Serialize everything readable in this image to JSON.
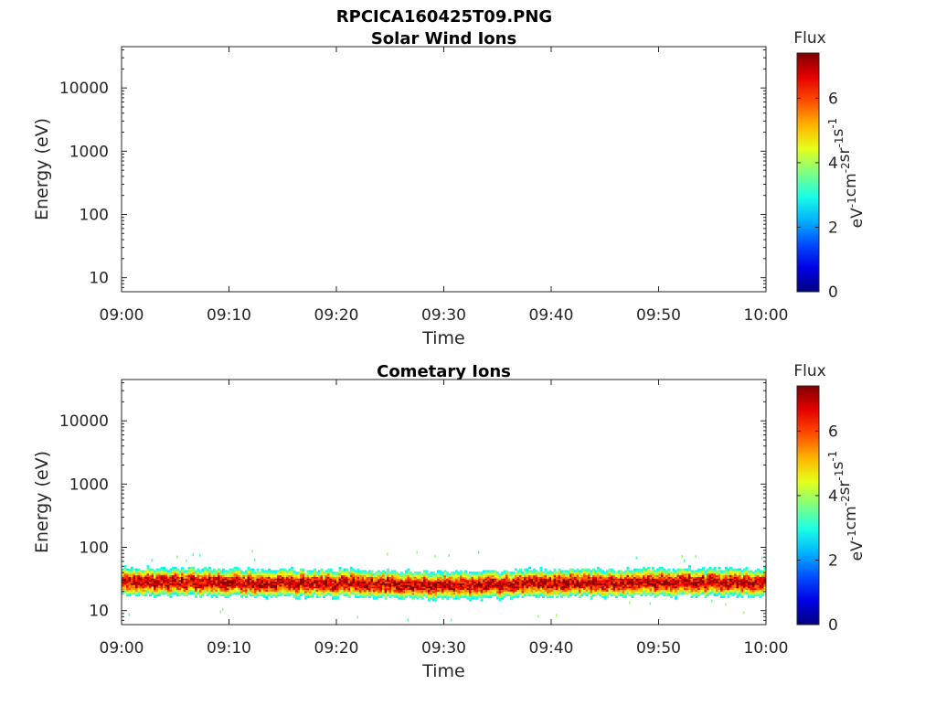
{
  "figure": {
    "title": "RPCICA160425T09.PNG"
  },
  "colorbar": {
    "label": "Flux",
    "ticks": [
      0,
      2,
      4,
      6
    ],
    "range": [
      0,
      7.4
    ],
    "colormap": "jet",
    "unit_parts": [
      "eV",
      "-1",
      "cm",
      "-2",
      "sr",
      "-1",
      "s",
      "-1"
    ]
  },
  "chart_data": [
    {
      "type": "heatmap",
      "title": "Solar Wind Ions",
      "xlabel": "Time",
      "ylabel": "Energy (eV)",
      "x_ticks": [
        "09:00",
        "09:10",
        "09:20",
        "09:30",
        "09:40",
        "09:50",
        "10:00"
      ],
      "xlim": [
        "09:00",
        "10:00"
      ],
      "y_scale": "log",
      "y_ticks": [
        10,
        100,
        1000,
        10000
      ],
      "ylim": [
        6,
        45000
      ],
      "data": "no flux above background"
    },
    {
      "type": "heatmap",
      "title": "Cometary Ions",
      "xlabel": "Time",
      "ylabel": "Energy (eV)",
      "x_ticks": [
        "09:00",
        "09:10",
        "09:20",
        "09:30",
        "09:40",
        "09:50",
        "10:00"
      ],
      "xlim": [
        "09:00",
        "10:00"
      ],
      "y_scale": "log",
      "y_ticks": [
        10,
        100,
        1000,
        10000
      ],
      "ylim": [
        6,
        45000
      ],
      "band": {
        "peak_energy_eV": 28,
        "peak_flux": 7.2,
        "energy_range_eV": [
          15,
          60
        ],
        "time_range": [
          "09:00",
          "10:00"
        ]
      },
      "data": [
        {
          "time": "09:00",
          "peak_energy_eV": 29
        },
        {
          "time": "09:10",
          "peak_energy_eV": 28
        },
        {
          "time": "09:20",
          "peak_energy_eV": 27
        },
        {
          "time": "09:30",
          "peak_energy_eV": 25
        },
        {
          "time": "09:40",
          "peak_energy_eV": 27
        },
        {
          "time": "09:50",
          "peak_energy_eV": 28
        },
        {
          "time": "10:00",
          "peak_energy_eV": 28
        }
      ]
    }
  ]
}
